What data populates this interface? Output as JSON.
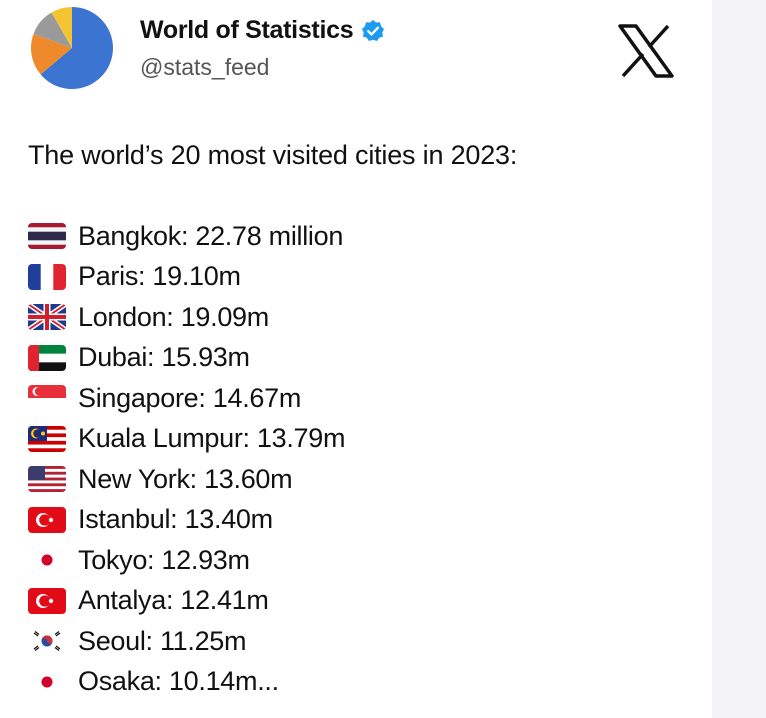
{
  "header": {
    "name": "World of Statistics",
    "handle": "@stats_feed"
  },
  "tweet": {
    "text": "The world’s 20 most visited cities in 2023:",
    "items": [
      "Bangkok: 22.78 million",
      "Paris: 19.10m",
      "London: 19.09m",
      "Dubai: 15.93m",
      "Singapore: 14.67m",
      "Kuala Lumpur: 13.79m",
      "New York: 13.60m",
      "Istanbul: 13.40m",
      "Tokyo: 12.93m",
      "Antalya: 12.41m",
      "Seoul: 11.25m",
      "Osaka: 10.14m..."
    ]
  }
}
